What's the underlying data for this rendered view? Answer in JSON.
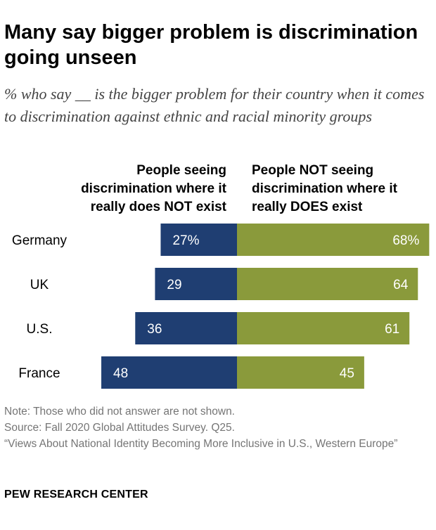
{
  "header": {
    "title": "Many say bigger problem is discrimination going unseen",
    "subtitle": "% who say __ is the bigger problem for their country when it comes to discrimination against ethnic and racial minority groups"
  },
  "columns": {
    "left": "People seeing discrimination where it really does NOT exist",
    "right": "People NOT seeing discrimination where it really DOES exist"
  },
  "colors": {
    "left_bar": "#1f3e72",
    "right_bar": "#8a9a3b",
    "bar_text": "#ffffff"
  },
  "chart_data": {
    "type": "bar",
    "orientation": "horizontal-diverging",
    "categories": [
      "Germany",
      "UK",
      "U.S.",
      "France"
    ],
    "series": [
      {
        "name": "People seeing discrimination where it really does NOT exist",
        "values": [
          27,
          29,
          36,
          48
        ]
      },
      {
        "name": "People NOT seeing discrimination where it really DOES exist",
        "values": [
          68,
          64,
          61,
          45
        ]
      }
    ],
    "value_labels": {
      "left": [
        "27%",
        "29",
        "36",
        "48"
      ],
      "right": [
        "68%",
        "64",
        "61",
        "45"
      ]
    },
    "xlim": [
      0,
      100
    ],
    "grid": false
  },
  "footer": {
    "note": "Note: Those who did not answer are not shown.",
    "source": "Source: Fall 2020 Global Attitudes Survey. Q25.",
    "report": "“Views About National Identity Becoming More Inclusive in U.S., Western Europe”",
    "brand": "PEW RESEARCH CENTER"
  }
}
